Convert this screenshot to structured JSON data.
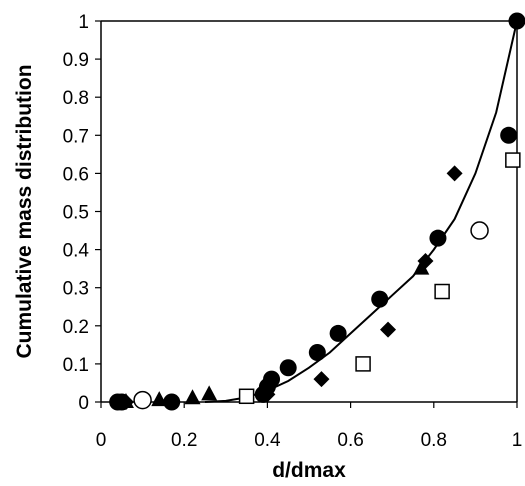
{
  "chart_data": {
    "type": "scatter",
    "title": "",
    "xlabel": "d/dmax",
    "ylabel": "Cumulative mass distribution",
    "xlim": [
      0,
      1
    ],
    "ylim": [
      0,
      1
    ],
    "x_ticks": [
      "0",
      "0.2",
      "0.4",
      "0.6",
      "0.8",
      "1"
    ],
    "y_ticks": [
      "0",
      "0.1",
      "0.2",
      "0.3",
      "0.4",
      "0.5",
      "0.6",
      "0.7",
      "0.8",
      "0.9",
      "1"
    ],
    "grid": false,
    "legend": "none",
    "series": [
      {
        "marker": "filled-circle",
        "points": [
          [
            0.04,
            0.0
          ],
          [
            0.05,
            0.0
          ],
          [
            0.17,
            0.0
          ],
          [
            0.39,
            0.02
          ],
          [
            0.4,
            0.04
          ],
          [
            0.41,
            0.06
          ],
          [
            0.45,
            0.09
          ],
          [
            0.52,
            0.13
          ],
          [
            0.57,
            0.18
          ],
          [
            0.67,
            0.27
          ],
          [
            0.81,
            0.43
          ],
          [
            0.98,
            0.7
          ],
          [
            1.0,
            1.0
          ]
        ]
      },
      {
        "marker": "open-circle",
        "points": [
          [
            0.1,
            0.005
          ],
          [
            0.91,
            0.45
          ]
        ]
      },
      {
        "marker": "filled-diamond",
        "points": [
          [
            0.06,
            0.0
          ],
          [
            0.4,
            0.02
          ],
          [
            0.53,
            0.06
          ],
          [
            0.69,
            0.19
          ],
          [
            0.78,
            0.37
          ],
          [
            0.85,
            0.6
          ]
        ]
      },
      {
        "marker": "open-square",
        "points": [
          [
            0.35,
            0.015
          ],
          [
            0.63,
            0.1
          ],
          [
            0.82,
            0.29
          ],
          [
            0.99,
            0.635
          ]
        ]
      },
      {
        "marker": "filled-triangle",
        "points": [
          [
            0.06,
            0.0
          ],
          [
            0.14,
            0.005
          ],
          [
            0.22,
            0.01
          ],
          [
            0.26,
            0.02
          ],
          [
            0.77,
            0.35
          ]
        ]
      }
    ],
    "fit_curve": {
      "style": "solid-line",
      "points": [
        [
          0.25,
          0.0
        ],
        [
          0.3,
          0.003
        ],
        [
          0.35,
          0.012
        ],
        [
          0.4,
          0.03
        ],
        [
          0.45,
          0.055
        ],
        [
          0.5,
          0.09
        ],
        [
          0.55,
          0.13
        ],
        [
          0.6,
          0.18
        ],
        [
          0.65,
          0.23
        ],
        [
          0.7,
          0.28
        ],
        [
          0.75,
          0.33
        ],
        [
          0.8,
          0.4
        ],
        [
          0.85,
          0.48
        ],
        [
          0.9,
          0.6
        ],
        [
          0.95,
          0.76
        ],
        [
          1.0,
          1.0
        ]
      ]
    }
  }
}
